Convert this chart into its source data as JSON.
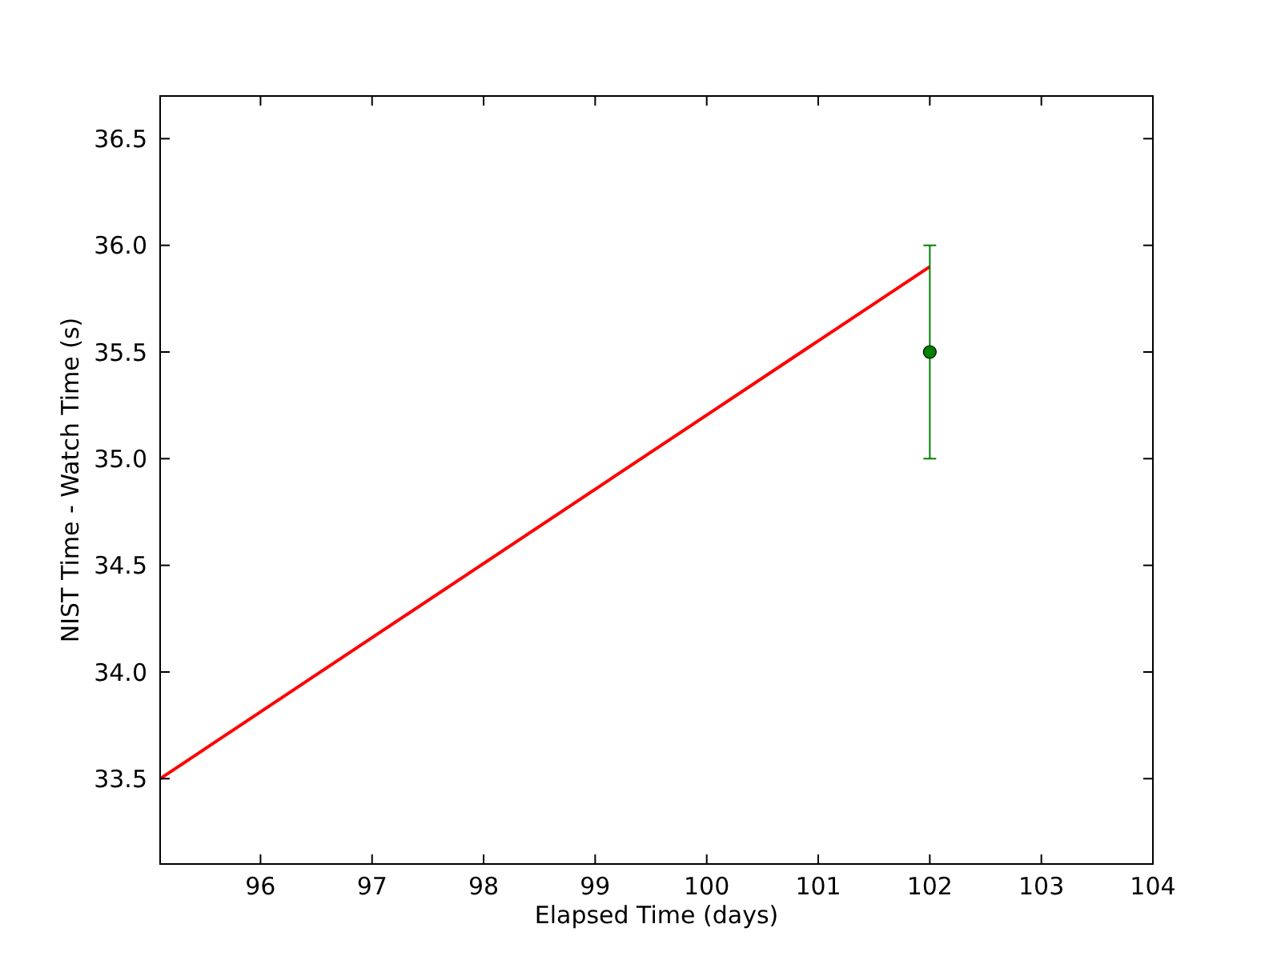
{
  "chart_data": {
    "type": "line",
    "xlabel": "Elapsed Time (days)",
    "ylabel": "NIST Time - Watch Time (s)",
    "x": [
      95.1,
      102
    ],
    "xlim": [
      95.1,
      104
    ],
    "ylim": [
      33.1,
      36.7
    ],
    "xticks": [
      96,
      97,
      98,
      99,
      100,
      101,
      102,
      103,
      104
    ],
    "yticks": [
      {
        "value": 33.5,
        "label": "33.5"
      },
      {
        "value": 34,
        "label": "34.0"
      },
      {
        "value": 34.5,
        "label": "34.5"
      },
      {
        "value": 35,
        "label": "35.0"
      },
      {
        "value": 35.5,
        "label": "35.5"
      },
      {
        "value": 36,
        "label": "36.0"
      },
      {
        "value": 36.5,
        "label": "36.5"
      }
    ],
    "series": [
      {
        "color": "#ff0000",
        "values": [
          33.5,
          35.9
        ],
        "marker": "none",
        "line_style": "solid"
      },
      {
        "type": "scatter",
        "color": "#007f00",
        "values": [
          null,
          35.5
        ],
        "errors": [
          null,
          0.5
        ],
        "marker": "circle"
      }
    ]
  }
}
